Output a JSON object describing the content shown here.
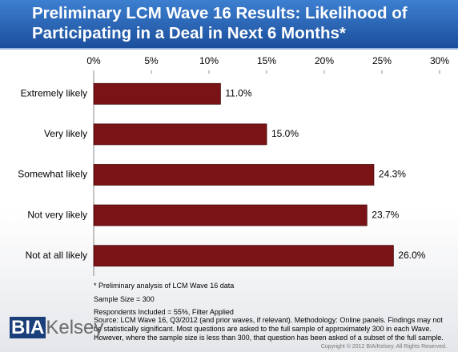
{
  "chart_data": {
    "type": "barh",
    "title": "Preliminary LCM Wave 16 Results: Likelihood of Participating in a Deal in Next 6 Months*",
    "categories": [
      "Extremely likely",
      "Very likely",
      "Somewhat likely",
      "Not very likely",
      "Not at all likely"
    ],
    "values": [
      11.0,
      15.0,
      24.3,
      23.7,
      26.0
    ],
    "value_labels": [
      "11.0%",
      "15.0%",
      "24.3%",
      "23.7%",
      "26.0%"
    ],
    "color": "#7a1315",
    "xlim": [
      0,
      30
    ],
    "xticks": [
      {
        "value": 0,
        "label": "0%"
      },
      {
        "value": 5,
        "label": "5%"
      },
      {
        "value": 10,
        "label": "10%"
      },
      {
        "value": 15,
        "label": "15%"
      },
      {
        "value": 20,
        "label": "20%"
      },
      {
        "value": 25,
        "label": "25%"
      },
      {
        "value": 30,
        "label": "30%"
      }
    ],
    "notes": [
      "* Preliminary analysis of LCM Wave 16 data",
      "Sample Size = 300",
      "Respondents Included = 55%, Filter Applied"
    ],
    "source": "Source: LCM Wave 16, Q3/2012 (and prior waves, if relevant). Methodology: Online panels. Findings may not be statistically significant. Most questions are asked to the full sample of approximately 300 in each Wave. However, where the sample size is less than 300, that question has been asked of a subset of the full sample."
  },
  "footer": {
    "logo_left": "BIA",
    "logo_right": "Kelsey",
    "copyright": "Copyright © 2012 BIA/Kelsey. All Rights Reserved."
  }
}
